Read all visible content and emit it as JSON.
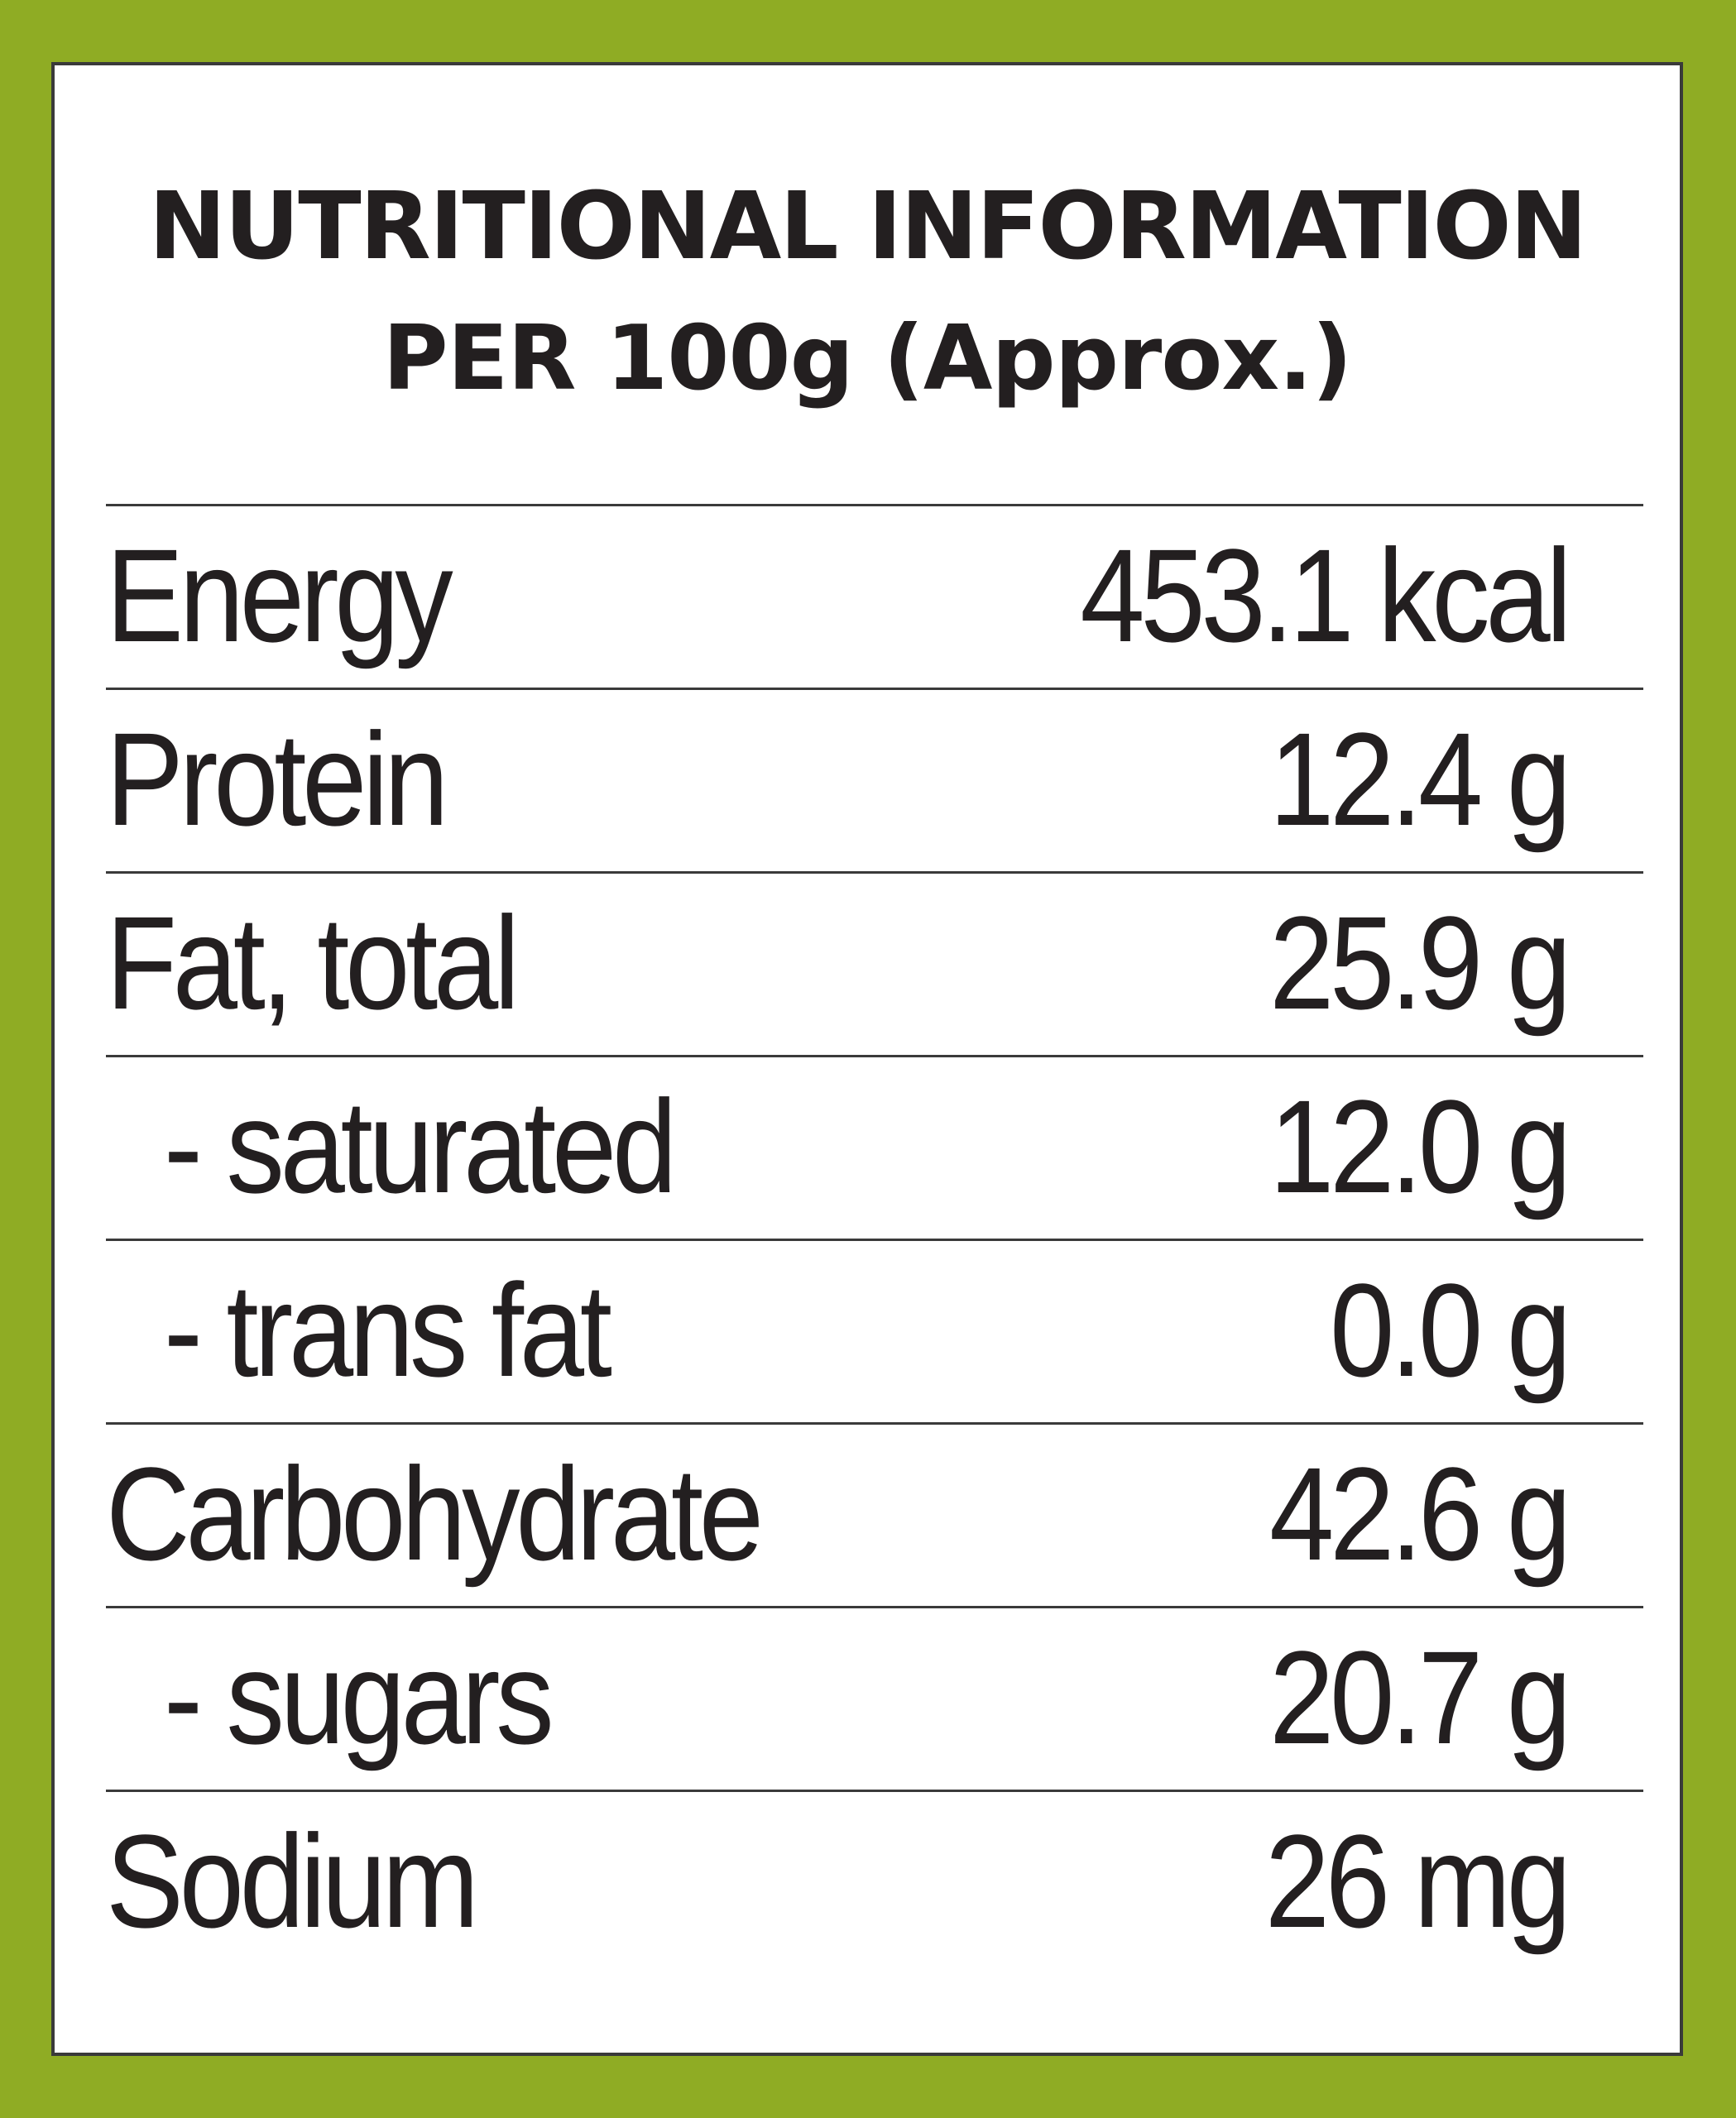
{
  "title": "NUTRITIONAL INFORMATION",
  "subtitle": "PER 100g (Approx.)",
  "colors": {
    "border": "#8fac24",
    "background": "#ffffff",
    "text": "#231f20"
  },
  "rows": [
    {
      "label": "Energy",
      "value": "453.1 kcal"
    },
    {
      "label": "Protein",
      "value": "12.4 g"
    },
    {
      "label": "Fat, total",
      "value": "25.9 g"
    },
    {
      "label": "- saturated",
      "value": "12.0 g"
    },
    {
      "label": "- trans fat",
      "value": "0.0 g"
    },
    {
      "label": "Carbohydrate",
      "value": "42.6 g"
    },
    {
      "label": "- sugars",
      "value": "20.7 g"
    },
    {
      "label": "Sodium",
      "value": "26 mg"
    }
  ]
}
